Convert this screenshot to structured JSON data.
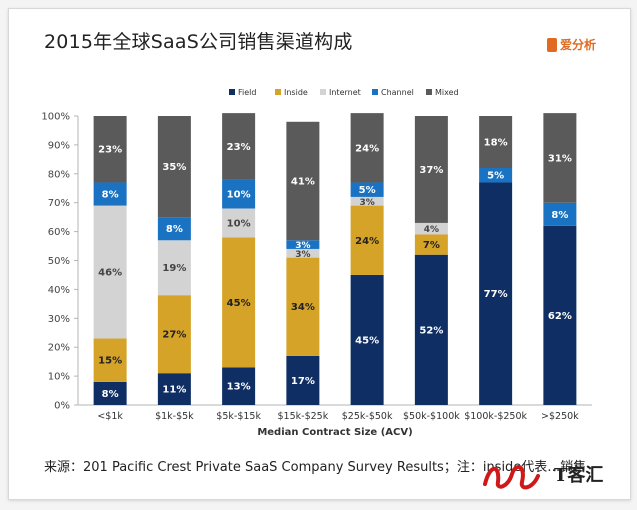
{
  "header": {
    "title": "2015年全球SaaS公司销售渠道构成",
    "logo_text": "爱分析"
  },
  "footnote": "来源：201 Pacific Crest Private SaaS Company Survey Results；注：inside代表…销售",
  "watermark": {
    "text": "T客汇"
  },
  "colors": {
    "Field": "#0f2f64",
    "Inside": "#d4a327",
    "Internet": "#d3d3d3",
    "Channel": "#1a72c2",
    "Mixed": "#5a5a5a"
  },
  "chart_data": {
    "type": "bar",
    "stacked": true,
    "percent": true,
    "xlabel": "Median Contract Size (ACV)",
    "ylabel": "",
    "ylim": [
      0,
      100
    ],
    "yticks": [
      "0%",
      "10%",
      "20%",
      "30%",
      "40%",
      "50%",
      "60%",
      "70%",
      "80%",
      "90%",
      "100%"
    ],
    "legend_position": "top",
    "grid": false,
    "categories": [
      "<$1k",
      "$1k-$5k",
      "$5k-$15k",
      "$15k-$25k",
      "$25k-$50k",
      "$50k-$100k",
      "$100k-$250k",
      ">$250k"
    ],
    "series": [
      {
        "name": "Field",
        "values": [
          8,
          11,
          13,
          17,
          45,
          52,
          77,
          62
        ]
      },
      {
        "name": "Inside",
        "values": [
          15,
          27,
          45,
          34,
          24,
          7,
          0,
          0
        ]
      },
      {
        "name": "Internet",
        "values": [
          46,
          19,
          10,
          3,
          3,
          4,
          0,
          0
        ]
      },
      {
        "name": "Channel",
        "values": [
          8,
          8,
          10,
          3,
          5,
          0,
          5,
          8
        ]
      },
      {
        "name": "Mixed",
        "values": [
          23,
          35,
          23,
          41,
          24,
          37,
          18,
          31
        ]
      }
    ]
  }
}
